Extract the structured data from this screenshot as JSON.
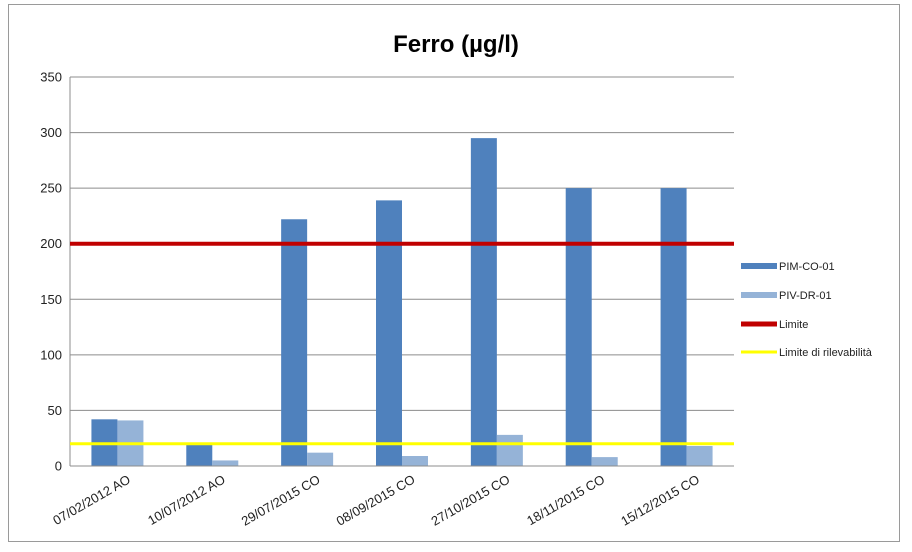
{
  "chart_data": {
    "type": "bar",
    "title": "Ferro (µg/l)",
    "categories": [
      "07/02/2012 AO",
      "10/07/2012 AO",
      "29/07/2015 CO",
      "08/09/2015 CO",
      "27/10/2015 CO",
      "18/11/2015 CO",
      "15/12/2015 CO"
    ],
    "series": [
      {
        "name": "PIM-CO-01",
        "values": [
          42,
          19,
          222,
          239,
          295,
          250,
          250
        ],
        "color": "#4F81BD"
      },
      {
        "name": "PIV-DR-01",
        "values": [
          41,
          5,
          12,
          9,
          28,
          8,
          18
        ],
        "color": "#95B3D7"
      }
    ],
    "reference_lines": [
      {
        "name": "Limite",
        "value": 200,
        "color": "#C00000"
      },
      {
        "name": "Limite di rilevabilità",
        "value": 20,
        "color": "#FFFF00"
      }
    ],
    "yticks": [
      "0",
      "50",
      "100",
      "150",
      "200",
      "250",
      "300",
      "350"
    ],
    "ylim": [
      0,
      350
    ],
    "grid": "horizontal",
    "legend_position": "right"
  }
}
